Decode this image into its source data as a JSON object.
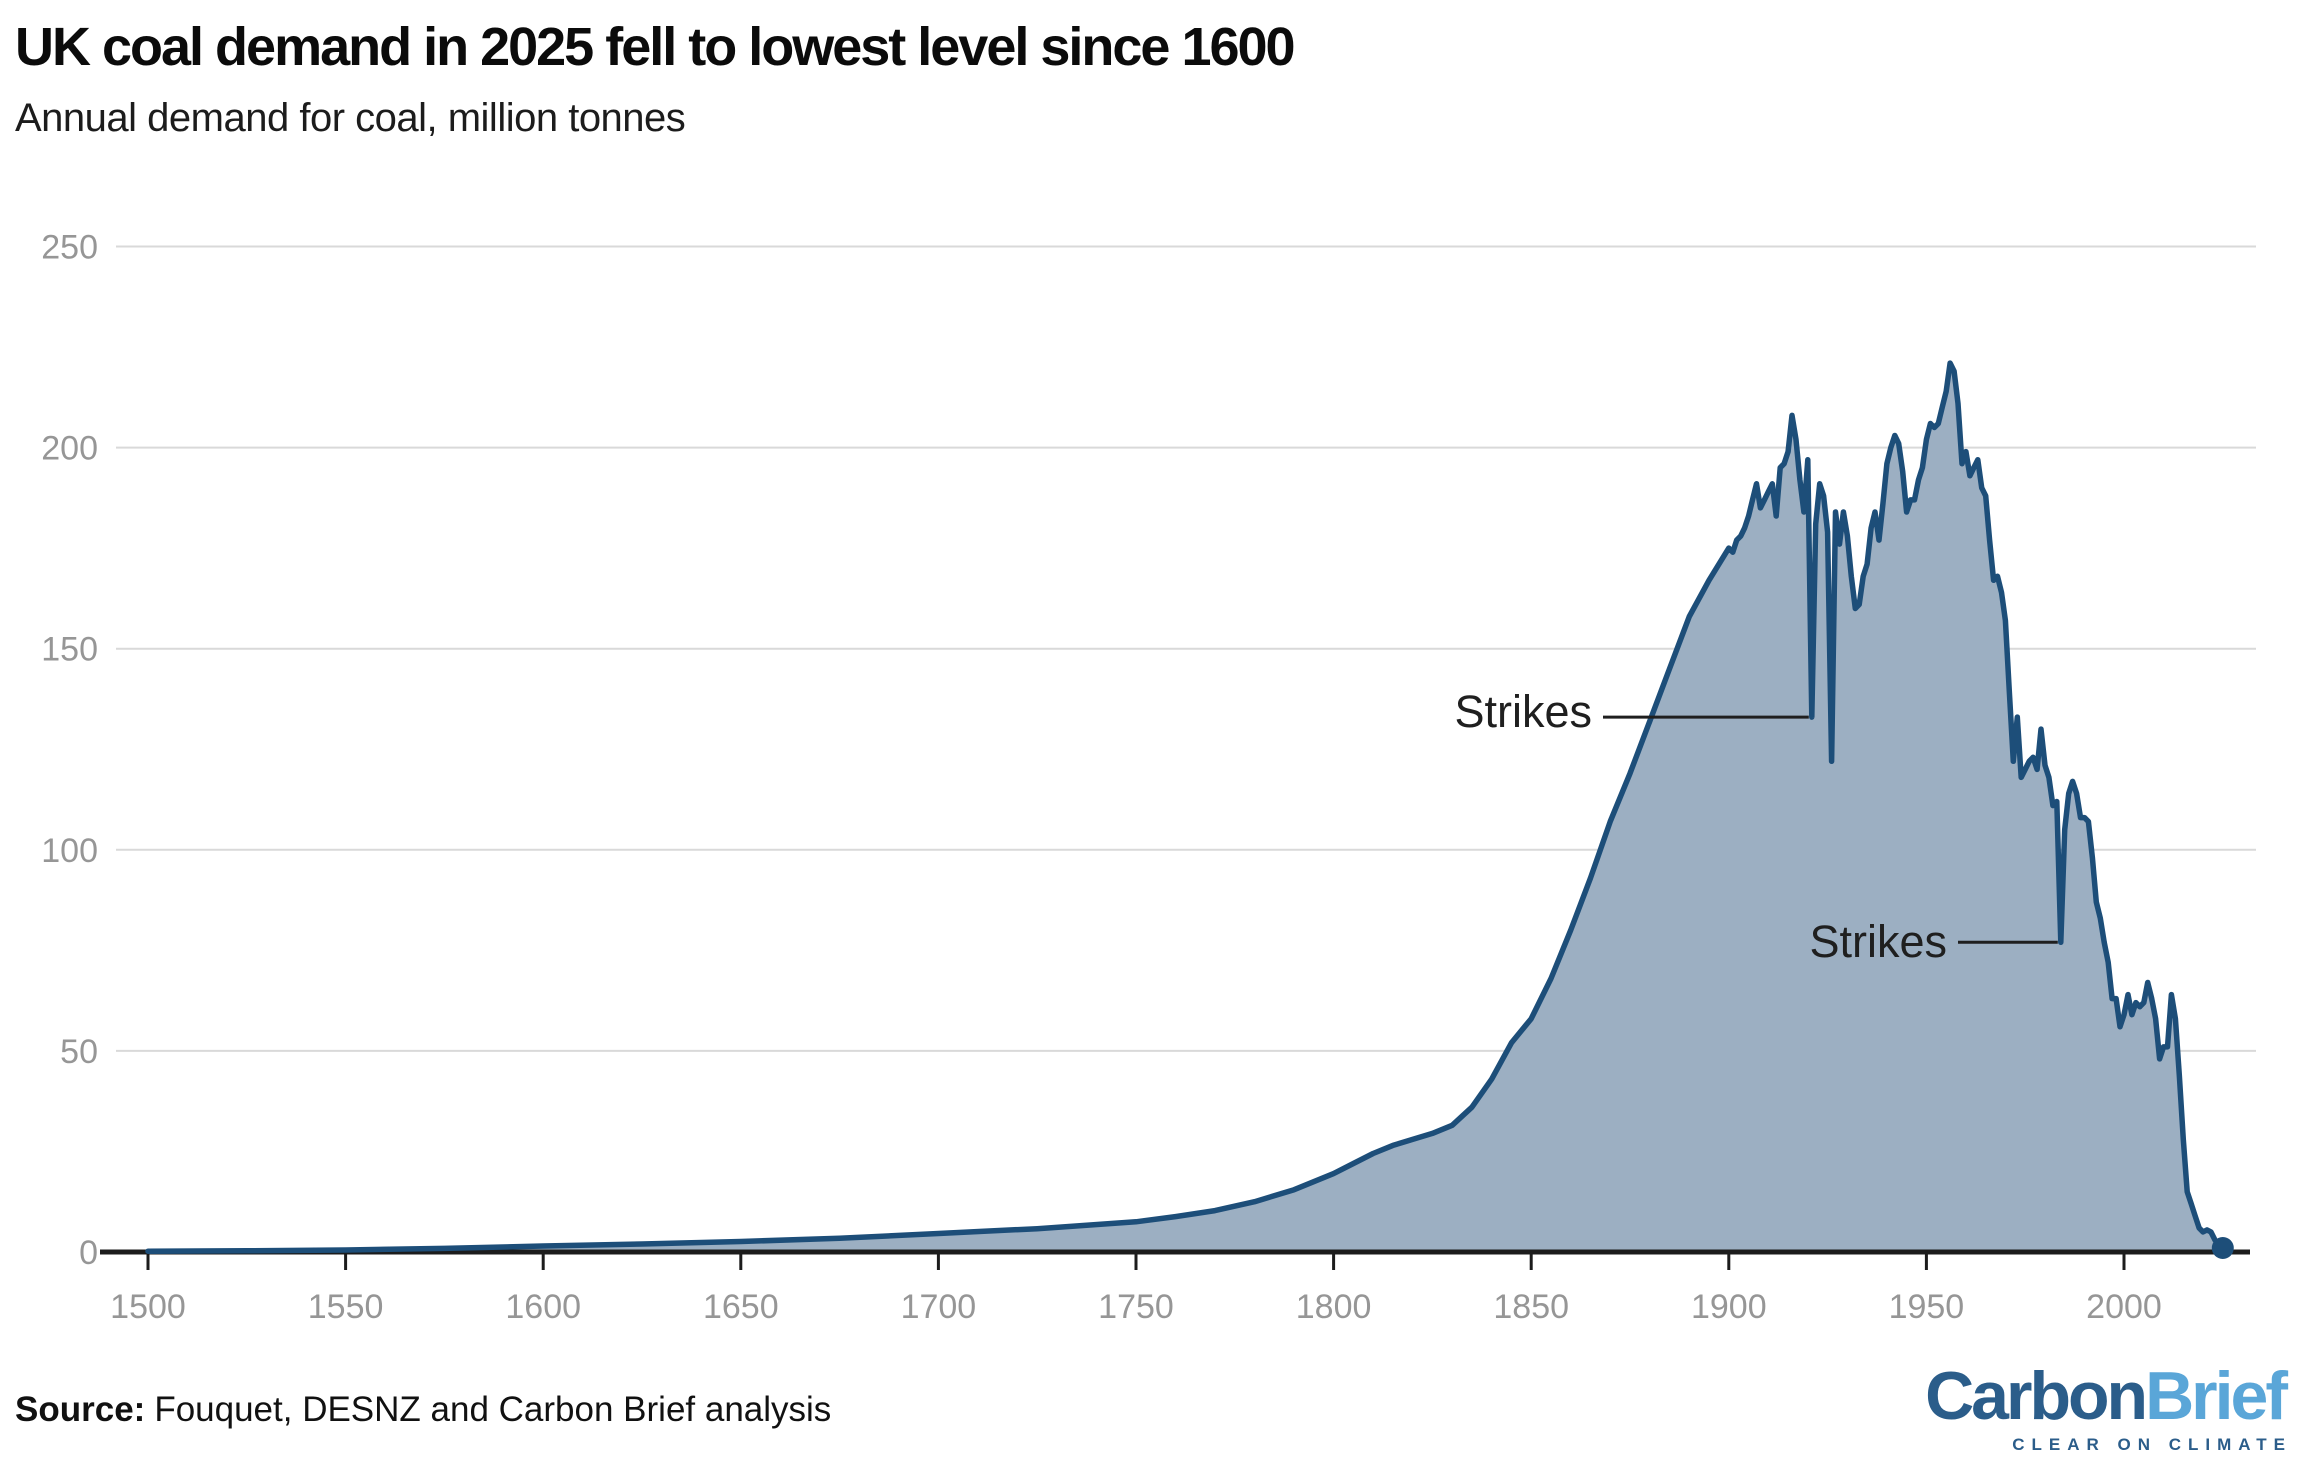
{
  "footer": {
    "source_label": "Source:",
    "source_text": "Fouquet, DESNZ and Carbon Brief analysis"
  },
  "branding": {
    "logo_part1": "Carbon",
    "logo_part2": "Brief",
    "tagline": "CLEAR ON CLIMATE",
    "logo_dark_blue": "#2b5d8a",
    "logo_light_blue": "#5aa6d8"
  },
  "chart_data": {
    "type": "area",
    "title": "UK coal demand in 2025 fell to lowest level since 1600",
    "subtitle": "Annual demand for coal, million tonnes",
    "xlabel": "",
    "ylabel": "million tonnes",
    "x_domain": [
      1500,
      2025
    ],
    "y_domain": [
      0,
      250
    ],
    "x_ticks": [
      1500,
      1550,
      1600,
      1650,
      1700,
      1750,
      1800,
      1850,
      1900,
      1950,
      2000
    ],
    "y_ticks": [
      0,
      50,
      100,
      150,
      200,
      250
    ],
    "grid": "horizontal",
    "legend": "none",
    "colors": {
      "line": "#1d4e79",
      "fill": "#9cafc2",
      "axis": "#1c1c1c",
      "grid": "#d9d9d9",
      "tick_label": "#969696",
      "annotation": "#1f1f1f"
    },
    "end_marker": {
      "year": 2025,
      "value": 1
    },
    "annotations": [
      {
        "label": "Strikes",
        "year": 1921,
        "value": 133
      },
      {
        "label": "Strikes",
        "year": 1984,
        "value": 77
      }
    ],
    "series": [
      {
        "name": "UK coal demand (million tonnes)",
        "points": [
          [
            1500,
            0.2
          ],
          [
            1525,
            0.3
          ],
          [
            1550,
            0.5
          ],
          [
            1575,
            0.9
          ],
          [
            1600,
            1.5
          ],
          [
            1625,
            2.0
          ],
          [
            1650,
            2.6
          ],
          [
            1675,
            3.4
          ],
          [
            1700,
            4.6
          ],
          [
            1725,
            5.8
          ],
          [
            1750,
            7.5
          ],
          [
            1760,
            8.8
          ],
          [
            1770,
            10.3
          ],
          [
            1780,
            12.5
          ],
          [
            1790,
            15.5
          ],
          [
            1800,
            19.5
          ],
          [
            1805,
            22
          ],
          [
            1810,
            24.5
          ],
          [
            1815,
            26.5
          ],
          [
            1820,
            28
          ],
          [
            1825,
            29.5
          ],
          [
            1830,
            31.5
          ],
          [
            1835,
            36
          ],
          [
            1840,
            43
          ],
          [
            1845,
            52
          ],
          [
            1850,
            58
          ],
          [
            1855,
            68
          ],
          [
            1860,
            80
          ],
          [
            1865,
            93
          ],
          [
            1870,
            107
          ],
          [
            1875,
            119
          ],
          [
            1880,
            132
          ],
          [
            1885,
            145
          ],
          [
            1890,
            158
          ],
          [
            1895,
            167
          ],
          [
            1900,
            175
          ],
          [
            1901,
            174
          ],
          [
            1902,
            177
          ],
          [
            1903,
            178
          ],
          [
            1904,
            180
          ],
          [
            1905,
            183
          ],
          [
            1906,
            187
          ],
          [
            1907,
            191
          ],
          [
            1908,
            185
          ],
          [
            1909,
            187
          ],
          [
            1910,
            189
          ],
          [
            1911,
            191
          ],
          [
            1912,
            183
          ],
          [
            1913,
            195
          ],
          [
            1914,
            196
          ],
          [
            1915,
            199
          ],
          [
            1916,
            208
          ],
          [
            1917,
            202
          ],
          [
            1918,
            192
          ],
          [
            1919,
            184
          ],
          [
            1920,
            197
          ],
          [
            1921,
            133
          ],
          [
            1922,
            181
          ],
          [
            1923,
            191
          ],
          [
            1924,
            188
          ],
          [
            1925,
            179
          ],
          [
            1926,
            122
          ],
          [
            1927,
            184
          ],
          [
            1928,
            176
          ],
          [
            1929,
            184
          ],
          [
            1930,
            178
          ],
          [
            1931,
            168
          ],
          [
            1932,
            160
          ],
          [
            1933,
            161
          ],
          [
            1934,
            168
          ],
          [
            1935,
            171
          ],
          [
            1936,
            180
          ],
          [
            1937,
            184
          ],
          [
            1938,
            177
          ],
          [
            1939,
            186
          ],
          [
            1940,
            196
          ],
          [
            1941,
            200
          ],
          [
            1942,
            203
          ],
          [
            1943,
            201
          ],
          [
            1944,
            194
          ],
          [
            1945,
            184
          ],
          [
            1946,
            187
          ],
          [
            1947,
            187
          ],
          [
            1948,
            192
          ],
          [
            1949,
            195
          ],
          [
            1950,
            202
          ],
          [
            1951,
            206
          ],
          [
            1952,
            205
          ],
          [
            1953,
            206
          ],
          [
            1954,
            210
          ],
          [
            1955,
            214
          ],
          [
            1956,
            221
          ],
          [
            1957,
            219
          ],
          [
            1958,
            211
          ],
          [
            1959,
            196
          ],
          [
            1960,
            199
          ],
          [
            1961,
            193
          ],
          [
            1962,
            195
          ],
          [
            1963,
            197
          ],
          [
            1964,
            190
          ],
          [
            1965,
            188
          ],
          [
            1966,
            177
          ],
          [
            1967,
            167
          ],
          [
            1968,
            168
          ],
          [
            1969,
            164
          ],
          [
            1970,
            157
          ],
          [
            1971,
            139
          ],
          [
            1972,
            122
          ],
          [
            1973,
            133
          ],
          [
            1974,
            118
          ],
          [
            1975,
            120
          ],
          [
            1976,
            122
          ],
          [
            1977,
            123
          ],
          [
            1978,
            120
          ],
          [
            1979,
            130
          ],
          [
            1980,
            121
          ],
          [
            1981,
            118
          ],
          [
            1982,
            111
          ],
          [
            1983,
            112
          ],
          [
            1984,
            77
          ],
          [
            1985,
            105
          ],
          [
            1986,
            114
          ],
          [
            1987,
            117
          ],
          [
            1988,
            114
          ],
          [
            1989,
            108
          ],
          [
            1990,
            108
          ],
          [
            1991,
            107
          ],
          [
            1992,
            98
          ],
          [
            1993,
            87
          ],
          [
            1994,
            83
          ],
          [
            1995,
            77
          ],
          [
            1996,
            72
          ],
          [
            1997,
            63
          ],
          [
            1998,
            63
          ],
          [
            1999,
            56
          ],
          [
            2000,
            59
          ],
          [
            2001,
            64
          ],
          [
            2002,
            59
          ],
          [
            2003,
            62
          ],
          [
            2004,
            61
          ],
          [
            2005,
            62
          ],
          [
            2006,
            67
          ],
          [
            2007,
            63
          ],
          [
            2008,
            58
          ],
          [
            2009,
            48
          ],
          [
            2010,
            51
          ],
          [
            2011,
            51
          ],
          [
            2012,
            64
          ],
          [
            2013,
            58
          ],
          [
            2014,
            44
          ],
          [
            2015,
            28
          ],
          [
            2016,
            15
          ],
          [
            2017,
            12
          ],
          [
            2018,
            9
          ],
          [
            2019,
            6
          ],
          [
            2020,
            5
          ],
          [
            2021,
            5.5
          ],
          [
            2022,
            5
          ],
          [
            2023,
            3
          ],
          [
            2024,
            1.8
          ],
          [
            2025,
            1
          ]
        ]
      }
    ]
  }
}
